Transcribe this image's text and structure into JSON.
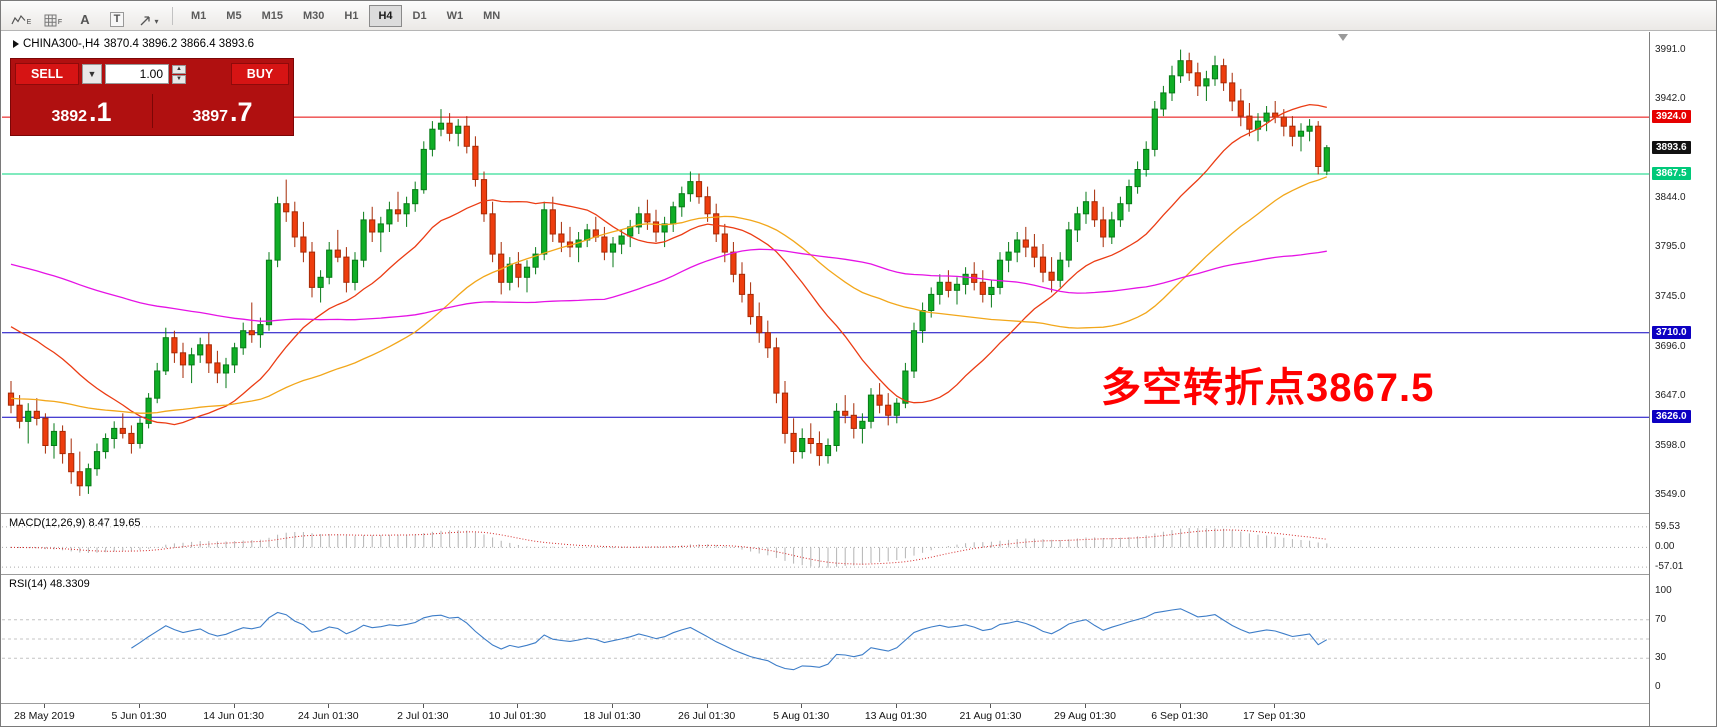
{
  "toolbar": {
    "icons": {
      "expert_letter": "E",
      "grid_letter": "F",
      "cursor_label": "A",
      "text_tool_label": "T",
      "dropdown_caret": "▾"
    },
    "timeframes": [
      {
        "label": "M1",
        "active": false
      },
      {
        "label": "M5",
        "active": false
      },
      {
        "label": "M15",
        "active": false
      },
      {
        "label": "M30",
        "active": false
      },
      {
        "label": "H1",
        "active": false
      },
      {
        "label": "H4",
        "active": true
      },
      {
        "label": "D1",
        "active": false
      },
      {
        "label": "W1",
        "active": false
      },
      {
        "label": "MN",
        "active": false
      }
    ]
  },
  "chart_header": {
    "symbol": "CHINA300-,H4",
    "ohlc": "3870.4 3896.2 3866.4 3893.6"
  },
  "trade_panel": {
    "sell_label": "SELL",
    "buy_label": "BUY",
    "volume": "1.00",
    "dropdown_caret": "▼",
    "spin_up": "▲",
    "spin_down": "▼",
    "sell_price_main": "3892",
    "sell_price_frac": ".1",
    "buy_price_main": "3897",
    "buy_price_frac": ".7"
  },
  "annotation": {
    "text": "多空转折点3867.5",
    "color": "#ff0000"
  },
  "macd_panel": {
    "label": "MACD(12,26,9) 8.47 19.65"
  },
  "rsi_panel": {
    "label": "RSI(14) 48.3309"
  },
  "time_axis": {
    "labels": [
      {
        "text": "28 May 2019",
        "i": 4
      },
      {
        "text": "5 Jun 01:30",
        "i": 15
      },
      {
        "text": "14 Jun 01:30",
        "i": 26
      },
      {
        "text": "24 Jun 01:30",
        "i": 37
      },
      {
        "text": "2 Jul 01:30",
        "i": 48
      },
      {
        "text": "10 Jul 01:30",
        "i": 59
      },
      {
        "text": "18 Jul 01:30",
        "i": 70
      },
      {
        "text": "26 Jul 01:30",
        "i": 81
      },
      {
        "text": "5 Aug 01:30",
        "i": 92
      },
      {
        "text": "13 Aug 01:30",
        "i": 103
      },
      {
        "text": "21 Aug 01:30",
        "i": 114
      },
      {
        "text": "29 Aug 01:30",
        "i": 125
      },
      {
        "text": "6 Sep 01:30",
        "i": 136
      },
      {
        "text": "17 Sep 01:30",
        "i": 147
      }
    ]
  },
  "chart_data": {
    "type": "candlestick",
    "symbol": "CHINA300-",
    "timeframe": "H4",
    "ohlc_display": {
      "open": 3870.4,
      "high": 3896.2,
      "low": 3866.4,
      "close": 3893.6
    },
    "price_domain": [
      3531,
      4008.5
    ],
    "axis_ticks": [
      3991.0,
      3942.0,
      3844.0,
      3795.0,
      3745.0,
      3696.0,
      3647.0,
      3598.0,
      3549.0
    ],
    "hlines": [
      {
        "name": "resistance-line",
        "value": 3924.0,
        "line": true,
        "line_color": "#e60000",
        "tag_bg": "#e60000",
        "tag_fg": "#ffffff"
      },
      {
        "name": "current-price",
        "value": 3893.6,
        "line": false,
        "line_color": "#111111",
        "tag_bg": "#111111",
        "tag_fg": "#ffffff"
      },
      {
        "name": "pivot-line",
        "value": 3867.5,
        "line": true,
        "line_color": "#00d57e",
        "tag_bg": "#00c97a",
        "tag_fg": "#ffffff"
      },
      {
        "name": "support-line-1",
        "value": 3710.0,
        "line": true,
        "line_color": "#0d00c2",
        "tag_bg": "#0d00c2",
        "tag_fg": "#ffffff"
      },
      {
        "name": "support-line-2",
        "value": 3626.0,
        "line": true,
        "line_color": "#0d00c2",
        "tag_bg": "#0d00c2",
        "tag_fg": "#ffffff"
      }
    ],
    "colors": {
      "up": "#0fae26",
      "up_border": "#077a17",
      "down": "#ee3d0e",
      "down_border": "#a62a06"
    },
    "moving_averages": [
      {
        "period": 20,
        "pre": 3720,
        "color": "#eb3c14"
      },
      {
        "period": 44,
        "pre": 3645,
        "color": "#f2a71b"
      },
      {
        "period": 70,
        "pre": 3780,
        "color": "#e513e5"
      }
    ],
    "macd": {
      "fast": 12,
      "slow": 26,
      "signal_period": 9,
      "display_main": 8.47,
      "display_signal": 19.65,
      "domain": [
        97,
        -77
      ],
      "grid": [
        59.53,
        0.0,
        -57.01
      ]
    },
    "rsi": {
      "period": 14,
      "display_value": 48.3309,
      "domain": [
        0,
        100
      ],
      "axis_ticks": [
        100,
        70,
        30,
        0
      ],
      "levels": [
        70,
        50,
        30
      ]
    },
    "candles": [
      [
        3650,
        3662,
        3630,
        3638
      ],
      [
        3638,
        3648,
        3615,
        3622
      ],
      [
        3622,
        3640,
        3600,
        3632
      ],
      [
        3632,
        3645,
        3618,
        3625
      ],
      [
        3625,
        3630,
        3590,
        3598
      ],
      [
        3598,
        3620,
        3585,
        3612
      ],
      [
        3612,
        3618,
        3580,
        3590
      ],
      [
        3590,
        3605,
        3560,
        3572
      ],
      [
        3572,
        3592,
        3548,
        3558
      ],
      [
        3558,
        3580,
        3550,
        3575
      ],
      [
        3575,
        3600,
        3568,
        3592
      ],
      [
        3592,
        3610,
        3585,
        3605
      ],
      [
        3605,
        3622,
        3595,
        3615
      ],
      [
        3615,
        3630,
        3605,
        3610
      ],
      [
        3610,
        3618,
        3590,
        3600
      ],
      [
        3600,
        3625,
        3595,
        3620
      ],
      [
        3620,
        3650,
        3615,
        3645
      ],
      [
        3645,
        3680,
        3640,
        3672
      ],
      [
        3672,
        3715,
        3668,
        3705
      ],
      [
        3705,
        3712,
        3680,
        3690
      ],
      [
        3690,
        3700,
        3665,
        3678
      ],
      [
        3678,
        3695,
        3660,
        3688
      ],
      [
        3688,
        3705,
        3680,
        3698
      ],
      [
        3698,
        3710,
        3670,
        3680
      ],
      [
        3680,
        3692,
        3660,
        3670
      ],
      [
        3670,
        3685,
        3655,
        3678
      ],
      [
        3678,
        3700,
        3670,
        3695
      ],
      [
        3695,
        3720,
        3688,
        3712
      ],
      [
        3712,
        3740,
        3700,
        3708
      ],
      [
        3708,
        3725,
        3695,
        3718
      ],
      [
        3718,
        3790,
        3712,
        3782
      ],
      [
        3782,
        3845,
        3775,
        3838
      ],
      [
        3838,
        3862,
        3820,
        3830
      ],
      [
        3830,
        3840,
        3795,
        3805
      ],
      [
        3805,
        3820,
        3780,
        3790
      ],
      [
        3790,
        3800,
        3745,
        3755
      ],
      [
        3755,
        3772,
        3740,
        3765
      ],
      [
        3765,
        3800,
        3758,
        3792
      ],
      [
        3792,
        3812,
        3780,
        3785
      ],
      [
        3785,
        3795,
        3750,
        3760
      ],
      [
        3760,
        3790,
        3752,
        3782
      ],
      [
        3782,
        3830,
        3775,
        3822
      ],
      [
        3822,
        3835,
        3800,
        3810
      ],
      [
        3810,
        3825,
        3790,
        3818
      ],
      [
        3818,
        3840,
        3810,
        3832
      ],
      [
        3832,
        3850,
        3820,
        3828
      ],
      [
        3828,
        3845,
        3815,
        3838
      ],
      [
        3838,
        3860,
        3830,
        3852
      ],
      [
        3852,
        3900,
        3848,
        3892
      ],
      [
        3892,
        3920,
        3885,
        3912
      ],
      [
        3912,
        3932,
        3905,
        3918
      ],
      [
        3918,
        3928,
        3900,
        3908
      ],
      [
        3908,
        3922,
        3895,
        3915
      ],
      [
        3915,
        3925,
        3888,
        3895
      ],
      [
        3895,
        3905,
        3855,
        3862
      ],
      [
        3862,
        3870,
        3820,
        3828
      ],
      [
        3828,
        3840,
        3780,
        3788
      ],
      [
        3788,
        3800,
        3748,
        3760
      ],
      [
        3760,
        3785,
        3752,
        3778
      ],
      [
        3778,
        3790,
        3755,
        3765
      ],
      [
        3765,
        3782,
        3750,
        3775
      ],
      [
        3775,
        3795,
        3768,
        3788
      ],
      [
        3788,
        3840,
        3782,
        3832
      ],
      [
        3832,
        3845,
        3800,
        3808
      ],
      [
        3808,
        3820,
        3790,
        3800
      ],
      [
        3800,
        3815,
        3785,
        3795
      ],
      [
        3795,
        3810,
        3780,
        3802
      ],
      [
        3802,
        3818,
        3795,
        3812
      ],
      [
        3812,
        3825,
        3800,
        3805
      ],
      [
        3805,
        3815,
        3782,
        3790
      ],
      [
        3790,
        3805,
        3775,
        3798
      ],
      [
        3798,
        3812,
        3788,
        3806
      ],
      [
        3806,
        3822,
        3795,
        3815
      ],
      [
        3815,
        3835,
        3808,
        3828
      ],
      [
        3828,
        3842,
        3812,
        3820
      ],
      [
        3820,
        3832,
        3800,
        3810
      ],
      [
        3810,
        3825,
        3795,
        3818
      ],
      [
        3818,
        3840,
        3810,
        3835
      ],
      [
        3835,
        3855,
        3825,
        3848
      ],
      [
        3848,
        3870,
        3840,
        3860
      ],
      [
        3860,
        3868,
        3838,
        3845
      ],
      [
        3845,
        3855,
        3820,
        3828
      ],
      [
        3828,
        3838,
        3800,
        3808
      ],
      [
        3808,
        3818,
        3780,
        3790
      ],
      [
        3790,
        3800,
        3760,
        3768
      ],
      [
        3768,
        3780,
        3740,
        3748
      ],
      [
        3748,
        3760,
        3718,
        3726
      ],
      [
        3726,
        3740,
        3700,
        3710
      ],
      [
        3710,
        3722,
        3685,
        3695
      ],
      [
        3695,
        3705,
        3640,
        3650
      ],
      [
        3650,
        3662,
        3600,
        3610
      ],
      [
        3610,
        3625,
        3580,
        3592
      ],
      [
        3592,
        3615,
        3585,
        3605
      ],
      [
        3605,
        3620,
        3590,
        3600
      ],
      [
        3600,
        3612,
        3578,
        3588
      ],
      [
        3588,
        3605,
        3580,
        3598
      ],
      [
        3598,
        3640,
        3592,
        3632
      ],
      [
        3632,
        3648,
        3620,
        3628
      ],
      [
        3628,
        3640,
        3605,
        3615
      ],
      [
        3615,
        3630,
        3600,
        3622
      ],
      [
        3622,
        3655,
        3615,
        3648
      ],
      [
        3648,
        3660,
        3630,
        3638
      ],
      [
        3638,
        3650,
        3618,
        3628
      ],
      [
        3628,
        3645,
        3620,
        3640
      ],
      [
        3640,
        3680,
        3635,
        3672
      ],
      [
        3672,
        3720,
        3665,
        3712
      ],
      [
        3712,
        3740,
        3700,
        3732
      ],
      [
        3732,
        3755,
        3725,
        3748
      ],
      [
        3748,
        3768,
        3738,
        3760
      ],
      [
        3760,
        3772,
        3745,
        3752
      ],
      [
        3752,
        3765,
        3738,
        3758
      ],
      [
        3758,
        3775,
        3748,
        3768
      ],
      [
        3768,
        3780,
        3752,
        3760
      ],
      [
        3760,
        3772,
        3740,
        3748
      ],
      [
        3748,
        3762,
        3735,
        3755
      ],
      [
        3755,
        3790,
        3748,
        3782
      ],
      [
        3782,
        3800,
        3770,
        3790
      ],
      [
        3790,
        3810,
        3780,
        3802
      ],
      [
        3802,
        3815,
        3785,
        3795
      ],
      [
        3795,
        3808,
        3775,
        3785
      ],
      [
        3785,
        3798,
        3760,
        3770
      ],
      [
        3770,
        3785,
        3750,
        3762
      ],
      [
        3762,
        3790,
        3755,
        3782
      ],
      [
        3782,
        3820,
        3775,
        3812
      ],
      [
        3812,
        3835,
        3800,
        3828
      ],
      [
        3828,
        3850,
        3818,
        3840
      ],
      [
        3840,
        3852,
        3815,
        3822
      ],
      [
        3822,
        3835,
        3795,
        3805
      ],
      [
        3805,
        3830,
        3798,
        3822
      ],
      [
        3822,
        3845,
        3815,
        3838
      ],
      [
        3838,
        3862,
        3830,
        3855
      ],
      [
        3855,
        3880,
        3848,
        3872
      ],
      [
        3872,
        3900,
        3865,
        3892
      ],
      [
        3892,
        3940,
        3885,
        3932
      ],
      [
        3932,
        3955,
        3925,
        3948
      ],
      [
        3948,
        3975,
        3940,
        3965
      ],
      [
        3965,
        3991,
        3958,
        3980
      ],
      [
        3980,
        3988,
        3960,
        3968
      ],
      [
        3968,
        3978,
        3945,
        3955
      ],
      [
        3955,
        3970,
        3940,
        3962
      ],
      [
        3962,
        3985,
        3955,
        3975
      ],
      [
        3975,
        3982,
        3950,
        3958
      ],
      [
        3958,
        3968,
        3930,
        3940
      ],
      [
        3940,
        3952,
        3915,
        3925
      ],
      [
        3925,
        3938,
        3905,
        3912
      ],
      [
        3912,
        3928,
        3900,
        3920
      ],
      [
        3920,
        3935,
        3910,
        3928
      ],
      [
        3928,
        3940,
        3918,
        3924
      ],
      [
        3924,
        3932,
        3905,
        3915
      ],
      [
        3915,
        3925,
        3895,
        3905
      ],
      [
        3905,
        3918,
        3890,
        3910
      ],
      [
        3910,
        3922,
        3900,
        3915
      ],
      [
        3915,
        3920,
        3867,
        3875
      ],
      [
        3870.4,
        3896.2,
        3866.4,
        3893.6
      ]
    ]
  }
}
